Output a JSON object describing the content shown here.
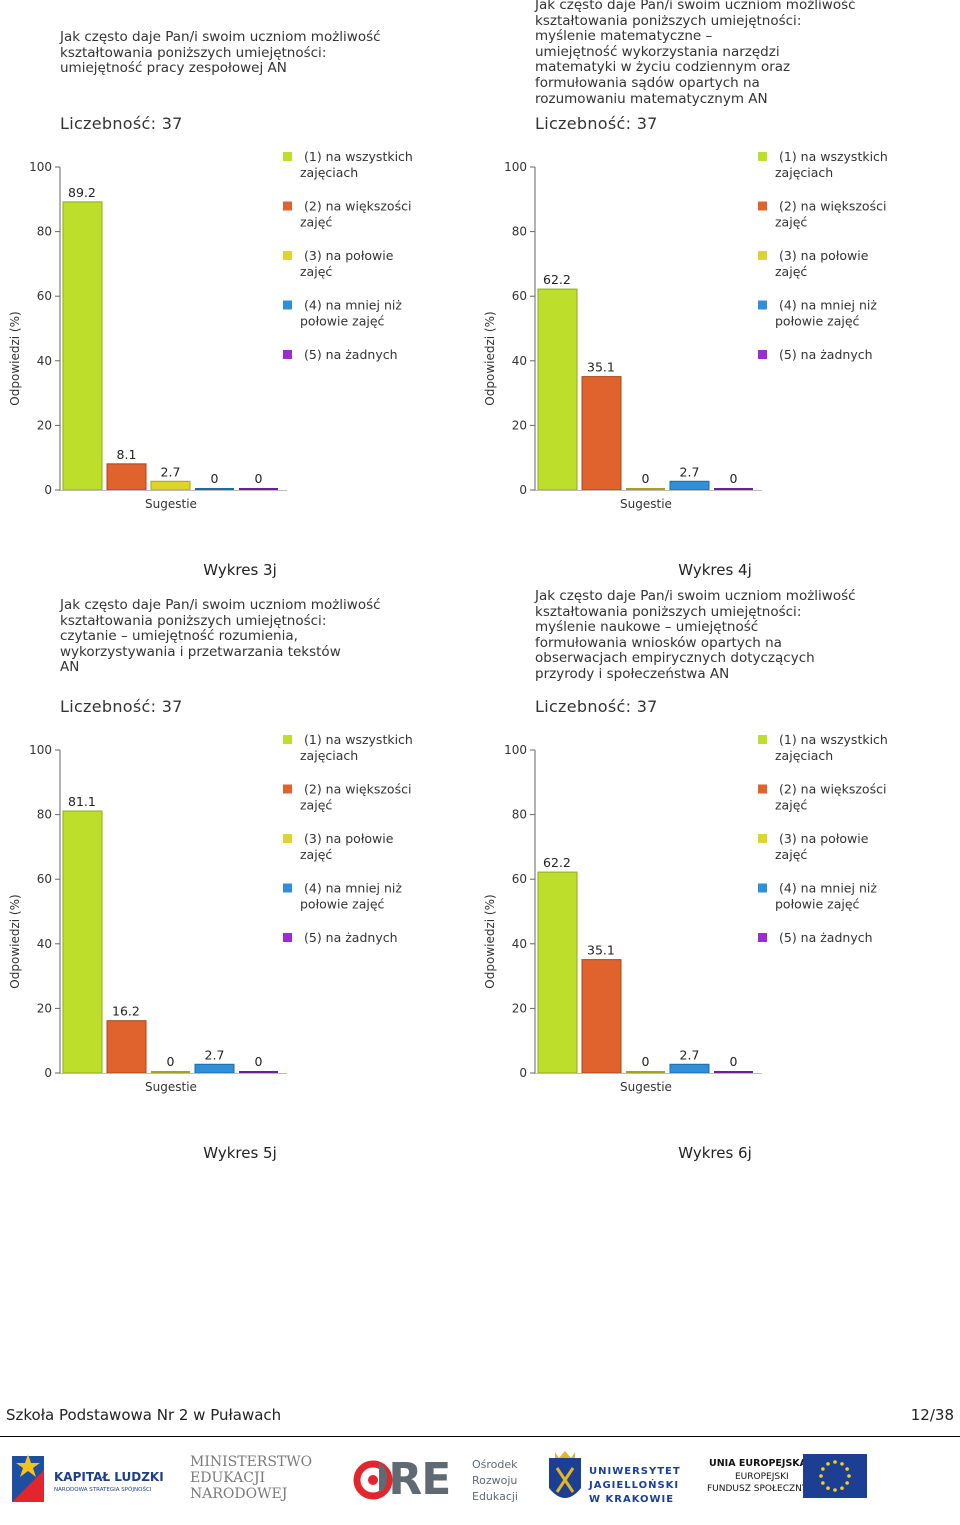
{
  "chart_data": [
    {
      "type": "bar",
      "question": "Jak często daje Pan/i swoim uczniom możliwość\nkształtowania poniższych umiejętności:\numiejętność pracy zespołowej AN",
      "count_label": "Liczebność: 37",
      "categories": [
        "(1) na wszystkich zajęciach",
        "(2) na większości zajęć",
        "(3) na połowie zajęć",
        "(4) na mniej niż połowie zajęć",
        "(5) na żadnych"
      ],
      "values": [
        89.2,
        8.1,
        2.7,
        0,
        0
      ],
      "value_labels": [
        "89.2",
        "8.1",
        "2.7",
        "0",
        "0"
      ],
      "xlabel": "Sugestie",
      "ylabel": "Odpowiedzi (%)",
      "ylim": [
        0,
        100
      ],
      "yticks": [
        "0",
        "20",
        "40",
        "60",
        "80",
        "100"
      ],
      "caption": "Wykres 3j"
    },
    {
      "type": "bar",
      "question": "Jak często daje Pan/i swoim uczniom możliwość\nkształtowania poniższych umiejętności:\nmyślenie matematyczne –\numiejętność wykorzystania narzędzi\nmatematyki w życiu codziennym oraz\nformułowania sądów opartych na\nrozumowaniu matematycznym AN",
      "count_label": "Liczebność: 37",
      "categories": [
        "(1) na wszystkich zajęciach",
        "(2) na większości zajęć",
        "(3) na połowie zajęć",
        "(4) na mniej niż połowie zajęć",
        "(5) na żadnych"
      ],
      "values": [
        62.2,
        35.1,
        0,
        2.7,
        0
      ],
      "value_labels": [
        "62.2",
        "35.1",
        "0",
        "2.7",
        "0"
      ],
      "xlabel": "Sugestie",
      "ylabel": "Odpowiedzi (%)",
      "ylim": [
        0,
        100
      ],
      "yticks": [
        "0",
        "20",
        "40",
        "60",
        "80",
        "100"
      ],
      "caption": "Wykres 4j"
    },
    {
      "type": "bar",
      "question": "Jak często daje Pan/i swoim uczniom możliwość\nkształtowania poniższych umiejętności:\nczytanie – umiejętność rozumienia,\nwykorzystywania i przetwarzania tekstów\nAN",
      "count_label": "Liczebność: 37",
      "categories": [
        "(1) na wszystkich zajęciach",
        "(2) na większości zajęć",
        "(3) na połowie zajęć",
        "(4) na mniej niż połowie zajęć",
        "(5) na żadnych"
      ],
      "values": [
        81.1,
        16.2,
        0,
        2.7,
        0
      ],
      "value_labels": [
        "81.1",
        "16.2",
        "0",
        "2.7",
        "0"
      ],
      "xlabel": "Sugestie",
      "ylabel": "Odpowiedzi (%)",
      "ylim": [
        0,
        100
      ],
      "yticks": [
        "0",
        "20",
        "40",
        "60",
        "80",
        "100"
      ],
      "caption": "Wykres 5j"
    },
    {
      "type": "bar",
      "question": "Jak często daje Pan/i swoim uczniom możliwość\nkształtowania poniższych umiejętności:\nmyślenie naukowe – umiejętność\nformułowania wniosków opartych na\nobserwacjach empirycznych dotyczących\nprzyrody i społeczeństwa AN",
      "count_label": "Liczebność: 37",
      "categories": [
        "(1) na wszystkich zajęciach",
        "(2) na większości zajęć",
        "(3) na połowie zajęć",
        "(4) na mniej niż połowie zajęć",
        "(5) na żadnych"
      ],
      "values": [
        62.2,
        35.1,
        0,
        2.7,
        0
      ],
      "value_labels": [
        "62.2",
        "35.1",
        "0",
        "2.7",
        "0"
      ],
      "xlabel": "Sugestie",
      "ylabel": "Odpowiedzi (%)",
      "ylim": [
        0,
        100
      ],
      "yticks": [
        "0",
        "20",
        "40",
        "60",
        "80",
        "100"
      ],
      "caption": "Wykres 6j"
    }
  ],
  "legend": [
    {
      "line1": "(1) na wszystkich",
      "line2": "zajęciach",
      "color": "#bddf2c"
    },
    {
      "line1": "(2) na większości",
      "line2": "zajęć",
      "color": "#e0622c"
    },
    {
      "line1": "(3) na połowie",
      "line2": "zajęć",
      "color": "#dcd52b"
    },
    {
      "line1": "(4) na mniej niż",
      "line2": "połowie zajęć",
      "color": "#2f8fd8"
    },
    {
      "line1": "(5) na żadnych",
      "line2": "",
      "color": "#9b2bd6"
    }
  ],
  "bar_colors": [
    "#bddf2c",
    "#e0622c",
    "#dcd52b",
    "#2f8fd8",
    "#9b2bd6"
  ],
  "bar_stroke_colors": [
    "#8cab17",
    "#a8461c",
    "#a9a219",
    "#1f6aa6",
    "#6d1e98"
  ],
  "footer": {
    "school": "Szkoła Podstawowa Nr 2 w Puławach",
    "page": "12/38"
  },
  "logos": {
    "kapital": {
      "title": "KAPITAŁ LUDZKI",
      "subtitle": "NARODOWA STRATEGIA SPÓJNOŚCI"
    },
    "men": {
      "line1": "MINISTERSTWO",
      "line2": "EDUKACJI",
      "line3": "NARODOWEJ"
    },
    "ore": {
      "mark": "ORE",
      "line1": "Ośrodek",
      "line2": "Rozwoju",
      "line3": "Edukacji"
    },
    "uj": {
      "line1": "UNIWERSYTET",
      "line2": "JAGIELLOŃSKI",
      "line3": "W KRAKOWIE"
    },
    "ue": {
      "line1": "UNIA EUROPEJSKA",
      "line2": "EUROPEJSKI",
      "line3": "FUNDUSZ SPOŁECZNY"
    }
  }
}
